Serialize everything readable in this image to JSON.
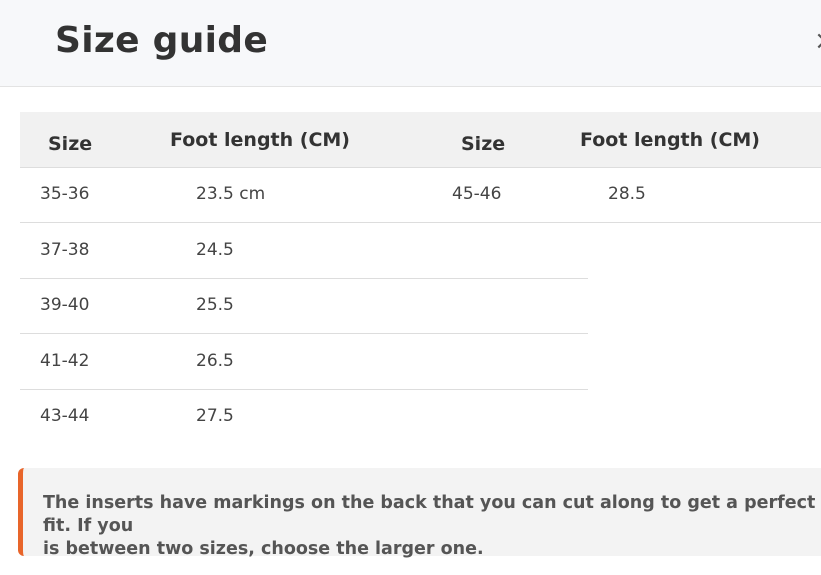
{
  "header": {
    "title": "Size guide",
    "close_icon": "close-icon"
  },
  "table": {
    "headers": [
      "Size",
      "Foot length (CM)",
      "Size",
      "Foot length (CM)"
    ],
    "left_rows": [
      [
        "35-36",
        "23.5 cm"
      ],
      [
        "37-38",
        "24.5"
      ],
      [
        "39-40",
        "25.5"
      ],
      [
        "41-42",
        "26.5"
      ],
      [
        "43-44",
        "27.5"
      ]
    ],
    "right_rows": [
      [
        "45-46",
        "28.5"
      ]
    ]
  },
  "note": {
    "line1": "The inserts have markings on the back that you can cut along to get a perfect fit. If you",
    "line2": "is between two sizes, choose the larger one.",
    "accent": "#e8652a"
  }
}
